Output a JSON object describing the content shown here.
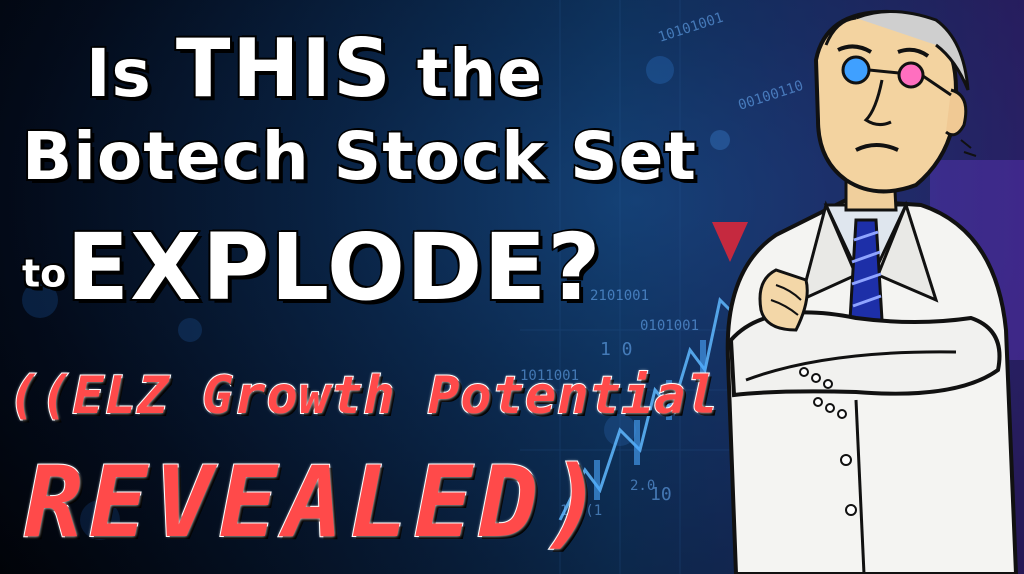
{
  "headline": {
    "line1_prefix": "Is",
    "line1_emphasis": "THIS",
    "line1_suffix": "the",
    "line2": "Biotech Stock Set",
    "line3_prefix": "to",
    "line3_emphasis": "EXPLODE?"
  },
  "subheadline": {
    "line1": "((ELZ Growth Potential",
    "line2": "REVEALED)"
  },
  "background": {
    "digits": [
      "10101001",
      "00100110",
      "1011001",
      "0101001",
      "2101001",
      "1 0",
      "2.0",
      "10",
      "10 (1",
      "1010"
    ]
  },
  "colors": {
    "background": "#030a18",
    "headline_text": "#ffffff",
    "subheadline_text": "#ff4a4a",
    "chart_accent": "#5fb8ff",
    "tie": "#1d2fa8"
  },
  "icons": [
    "scientist-illustration",
    "stock-chart-background",
    "red-arrow-down"
  ]
}
